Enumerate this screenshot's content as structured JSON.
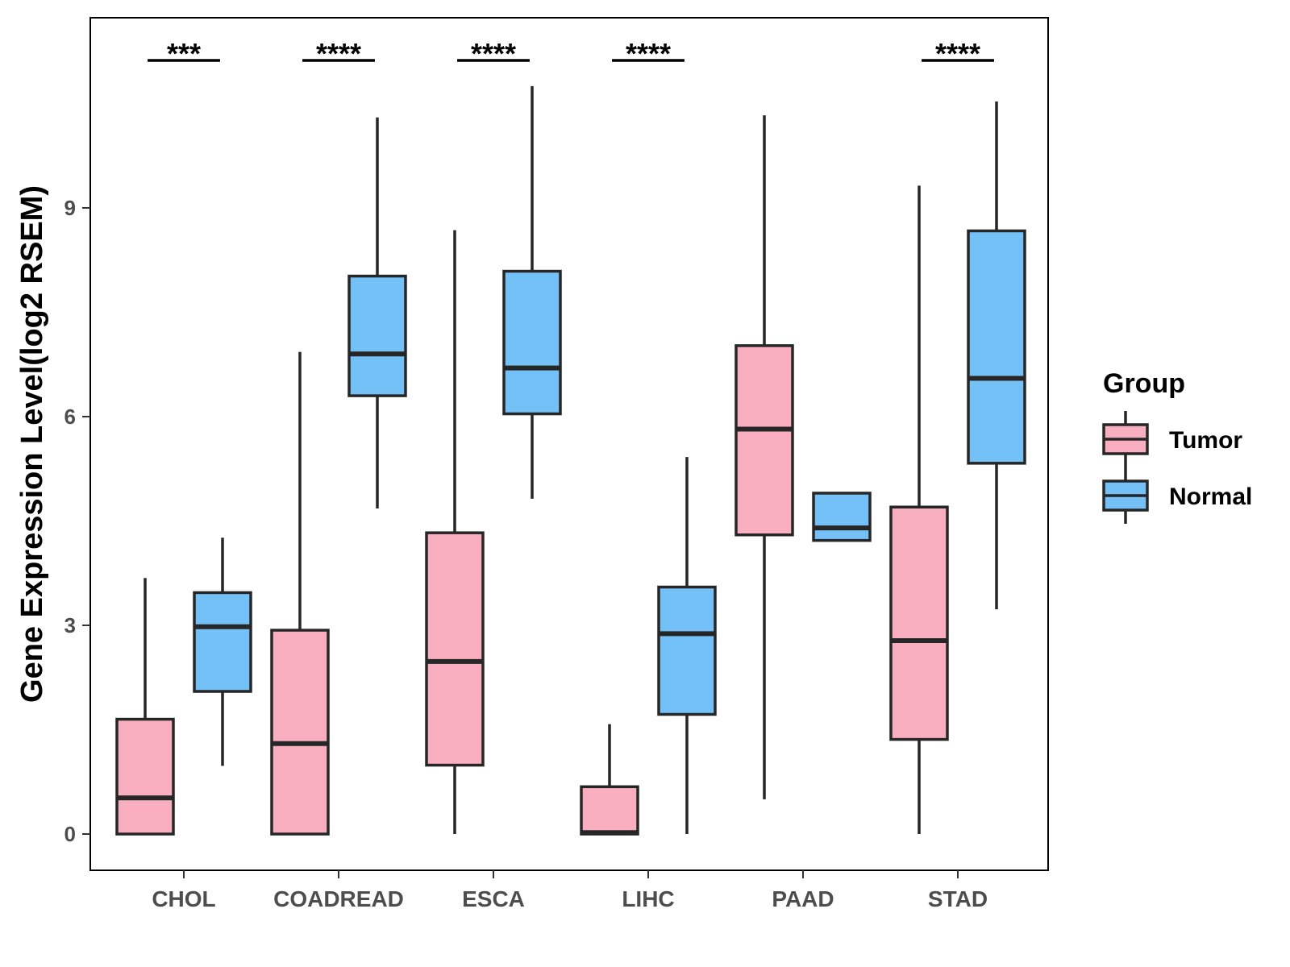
{
  "chart_data": {
    "type": "boxplot",
    "title": "",
    "xlabel": "",
    "ylabel": "Gene Expression Level(log2 RSEM)",
    "ylim": [
      -0.55,
      11.75
    ],
    "yticks": [
      0,
      3,
      6,
      9
    ],
    "grid": false,
    "categories": [
      "CHOL",
      "COADREAD",
      "ESCA",
      "LIHC",
      "PAAD",
      "STAD"
    ],
    "legend": {
      "title": "Group",
      "position": "right",
      "entries": [
        "Tumor",
        "Normal"
      ]
    },
    "series": [
      {
        "name": "Tumor",
        "color": "#F9AFC0",
        "boxes": [
          {
            "category": "CHOL",
            "min": 0,
            "q1": 0,
            "median": 0.52,
            "q3": 1.65,
            "max": 3.68
          },
          {
            "category": "COADREAD",
            "min": 0,
            "q1": 0,
            "median": 1.3,
            "q3": 2.93,
            "max": 6.93
          },
          {
            "category": "ESCA",
            "min": 0,
            "q1": 0.99,
            "median": 2.48,
            "q3": 4.33,
            "max": 8.68
          },
          {
            "category": "LIHC",
            "min": 0,
            "q1": 0,
            "median": 0.02,
            "q3": 0.68,
            "max": 1.58
          },
          {
            "category": "PAAD",
            "min": 0.5,
            "q1": 4.3,
            "median": 5.82,
            "q3": 7.02,
            "max": 10.33
          },
          {
            "category": "STAD",
            "min": 0,
            "q1": 1.36,
            "median": 2.78,
            "q3": 4.7,
            "max": 9.32
          }
        ]
      },
      {
        "name": "Normal",
        "color": "#74C1F8",
        "boxes": [
          {
            "category": "CHOL",
            "min": 0.98,
            "q1": 2.05,
            "median": 2.98,
            "q3": 3.47,
            "max": 4.26
          },
          {
            "category": "COADREAD",
            "min": 4.68,
            "q1": 6.3,
            "median": 6.9,
            "q3": 8.02,
            "max": 10.3
          },
          {
            "category": "ESCA",
            "min": 4.82,
            "q1": 6.04,
            "median": 6.7,
            "q3": 8.09,
            "max": 10.75
          },
          {
            "category": "LIHC",
            "min": 0,
            "q1": 1.72,
            "median": 2.88,
            "q3": 3.55,
            "max": 5.42
          },
          {
            "category": "PAAD",
            "min": 4.22,
            "q1": 4.22,
            "median": 4.4,
            "q3": 4.9,
            "max": 4.9
          },
          {
            "category": "STAD",
            "min": 3.23,
            "q1": 5.33,
            "median": 6.55,
            "q3": 8.67,
            "max": 10.53
          }
        ]
      }
    ],
    "significance": [
      {
        "category": "CHOL",
        "label": "***"
      },
      {
        "category": "COADREAD",
        "label": "****"
      },
      {
        "category": "ESCA",
        "label": "****"
      },
      {
        "category": "LIHC",
        "label": "****"
      },
      {
        "category": "PAAD",
        "label": ""
      },
      {
        "category": "STAD",
        "label": "****"
      }
    ]
  }
}
